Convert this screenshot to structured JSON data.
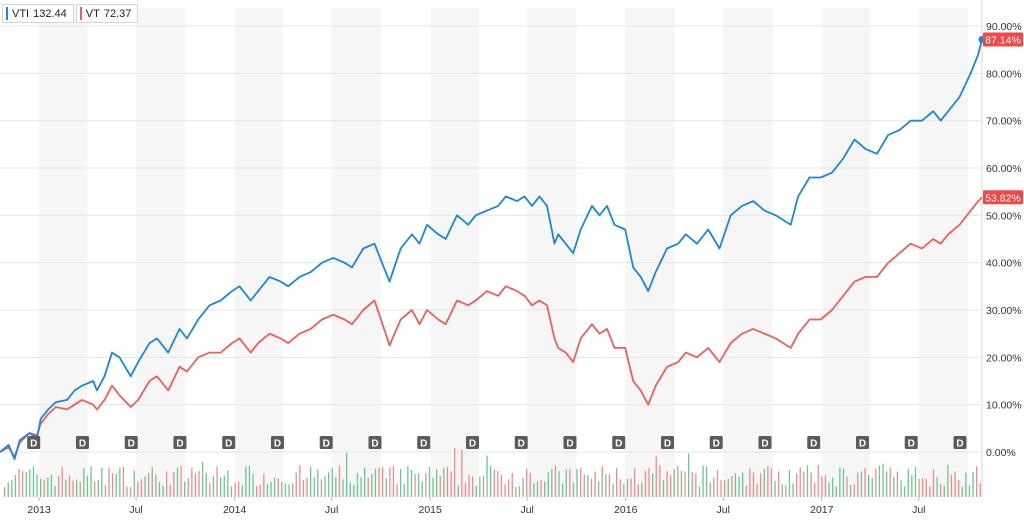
{
  "legend": {
    "vti": {
      "symbol": "VTI",
      "value": "132.44",
      "color": "#1a86e0"
    },
    "vt": {
      "symbol": "VT",
      "value": "72.37",
      "color": "#f25c5c"
    }
  },
  "chart_data": {
    "type": "line",
    "ylim": [
      -3,
      92
    ],
    "y_unit": "%",
    "y_ticks": [
      "0.00%",
      "10.00%",
      "20.00%",
      "30.00%",
      "40.00%",
      "50.00%",
      "60.00%",
      "70.00%",
      "80.00%",
      "90.00%"
    ],
    "y_tick_values": [
      0,
      10,
      20,
      30,
      40,
      50,
      60,
      70,
      80,
      90
    ],
    "x_ticks": [
      "2013",
      "Jul",
      "2014",
      "Jul",
      "2015",
      "Jul",
      "2016",
      "Jul",
      "2017",
      "Jul"
    ],
    "x_tick_dates": [
      "2013-01-01",
      "2013-07-01",
      "2014-01-01",
      "2014-07-01",
      "2015-01-01",
      "2015-07-01",
      "2016-01-01",
      "2016-07-01",
      "2017-01-01",
      "2017-07-01"
    ],
    "x_range": [
      "2012-10-20",
      "2017-10-27"
    ],
    "shading": "alternating quarters",
    "end_labels": [
      {
        "series": "VTI",
        "text": "87.14%",
        "value": 87.14
      },
      {
        "series": "VT",
        "text": "53.82%",
        "value": 53.82
      }
    ],
    "dividend_marker_label": "D",
    "dividend_dates": [
      "2012-12-21",
      "2013-03-22",
      "2013-06-21",
      "2013-09-20",
      "2013-12-20",
      "2014-03-21",
      "2014-06-20",
      "2014-09-19",
      "2014-12-19",
      "2015-03-20",
      "2015-06-19",
      "2015-09-18",
      "2015-12-18",
      "2016-03-18",
      "2016-06-17",
      "2016-09-16",
      "2016-12-16",
      "2017-03-17",
      "2017-06-16",
      "2017-09-15"
    ],
    "series": [
      {
        "name": "VTI",
        "color": "#1a86e0",
        "points": [
          [
            "2012-10-20",
            0
          ],
          [
            "2012-11-05",
            1.5
          ],
          [
            "2012-11-16",
            -1.5
          ],
          [
            "2012-11-26",
            2.5
          ],
          [
            "2012-12-14",
            4
          ],
          [
            "2012-12-28",
            3
          ],
          [
            "2013-01-04",
            7
          ],
          [
            "2013-01-18",
            9
          ],
          [
            "2013-02-01",
            10.5
          ],
          [
            "2013-02-22",
            11
          ],
          [
            "2013-03-08",
            13
          ],
          [
            "2013-03-22",
            14
          ],
          [
            "2013-04-12",
            15
          ],
          [
            "2013-04-19",
            13
          ],
          [
            "2013-05-03",
            16
          ],
          [
            "2013-05-17",
            21
          ],
          [
            "2013-05-31",
            20
          ],
          [
            "2013-06-21",
            16
          ],
          [
            "2013-07-05",
            19
          ],
          [
            "2013-07-26",
            23
          ],
          [
            "2013-08-09",
            24
          ],
          [
            "2013-08-30",
            21
          ],
          [
            "2013-09-20",
            26
          ],
          [
            "2013-10-04",
            24
          ],
          [
            "2013-10-25",
            28
          ],
          [
            "2013-11-15",
            31
          ],
          [
            "2013-12-06",
            32
          ],
          [
            "2013-12-27",
            34
          ],
          [
            "2014-01-10",
            35
          ],
          [
            "2014-01-31",
            32
          ],
          [
            "2014-02-14",
            34
          ],
          [
            "2014-03-07",
            37
          ],
          [
            "2014-03-28",
            36
          ],
          [
            "2014-04-11",
            35
          ],
          [
            "2014-05-02",
            37
          ],
          [
            "2014-05-23",
            38
          ],
          [
            "2014-06-13",
            40
          ],
          [
            "2014-07-04",
            41
          ],
          [
            "2014-07-25",
            40
          ],
          [
            "2014-08-08",
            39
          ],
          [
            "2014-08-29",
            43
          ],
          [
            "2014-09-19",
            44
          ],
          [
            "2014-10-10",
            38
          ],
          [
            "2014-10-17",
            36
          ],
          [
            "2014-11-07",
            43
          ],
          [
            "2014-11-28",
            46
          ],
          [
            "2014-12-12",
            44
          ],
          [
            "2014-12-26",
            48
          ],
          [
            "2015-01-16",
            46
          ],
          [
            "2015-01-30",
            45
          ],
          [
            "2015-02-20",
            50
          ],
          [
            "2015-03-13",
            48
          ],
          [
            "2015-03-27",
            50
          ],
          [
            "2015-04-17",
            51
          ],
          [
            "2015-05-08",
            52
          ],
          [
            "2015-05-22",
            54
          ],
          [
            "2015-06-12",
            53
          ],
          [
            "2015-06-26",
            54
          ],
          [
            "2015-07-10",
            52
          ],
          [
            "2015-07-24",
            54
          ],
          [
            "2015-08-07",
            52
          ],
          [
            "2015-08-21",
            44
          ],
          [
            "2015-08-28",
            46
          ],
          [
            "2015-09-11",
            44
          ],
          [
            "2015-09-25",
            42
          ],
          [
            "2015-10-09",
            47
          ],
          [
            "2015-10-30",
            52
          ],
          [
            "2015-11-13",
            50
          ],
          [
            "2015-11-27",
            52
          ],
          [
            "2015-12-11",
            48
          ],
          [
            "2015-12-31",
            47
          ],
          [
            "2016-01-15",
            39
          ],
          [
            "2016-01-29",
            37
          ],
          [
            "2016-02-12",
            34
          ],
          [
            "2016-02-26",
            38
          ],
          [
            "2016-03-18",
            43
          ],
          [
            "2016-04-08",
            44
          ],
          [
            "2016-04-22",
            46
          ],
          [
            "2016-05-13",
            44
          ],
          [
            "2016-06-03",
            47
          ],
          [
            "2016-06-24",
            43
          ],
          [
            "2016-07-15",
            50
          ],
          [
            "2016-08-05",
            52
          ],
          [
            "2016-08-26",
            53
          ],
          [
            "2016-09-16",
            51
          ],
          [
            "2016-10-07",
            50
          ],
          [
            "2016-11-04",
            48
          ],
          [
            "2016-11-18",
            54
          ],
          [
            "2016-12-09",
            58
          ],
          [
            "2016-12-30",
            58
          ],
          [
            "2017-01-20",
            59
          ],
          [
            "2017-02-10",
            62
          ],
          [
            "2017-03-03",
            66
          ],
          [
            "2017-03-24",
            64
          ],
          [
            "2017-04-14",
            63
          ],
          [
            "2017-05-05",
            67
          ],
          [
            "2017-05-26",
            68
          ],
          [
            "2017-06-16",
            70
          ],
          [
            "2017-07-07",
            70
          ],
          [
            "2017-07-28",
            72
          ],
          [
            "2017-08-11",
            70
          ],
          [
            "2017-08-25",
            72
          ],
          [
            "2017-09-15",
            75
          ],
          [
            "2017-10-06",
            80
          ],
          [
            "2017-10-20",
            84
          ],
          [
            "2017-10-27",
            87.14
          ]
        ]
      },
      {
        "name": "VT",
        "color": "#f25c5c",
        "points": [
          [
            "2012-10-20",
            0
          ],
          [
            "2012-11-05",
            1
          ],
          [
            "2012-11-16",
            -1
          ],
          [
            "2012-11-26",
            2
          ],
          [
            "2012-12-14",
            4
          ],
          [
            "2012-12-28",
            3.5
          ],
          [
            "2013-01-04",
            6
          ],
          [
            "2013-01-18",
            8
          ],
          [
            "2013-02-01",
            9.5
          ],
          [
            "2013-02-22",
            9
          ],
          [
            "2013-03-08",
            10
          ],
          [
            "2013-03-22",
            11
          ],
          [
            "2013-04-12",
            10
          ],
          [
            "2013-04-19",
            9
          ],
          [
            "2013-05-03",
            11
          ],
          [
            "2013-05-17",
            14
          ],
          [
            "2013-05-31",
            12
          ],
          [
            "2013-06-21",
            9.5
          ],
          [
            "2013-07-05",
            11
          ],
          [
            "2013-07-26",
            15
          ],
          [
            "2013-08-09",
            16
          ],
          [
            "2013-08-30",
            13
          ],
          [
            "2013-09-20",
            18
          ],
          [
            "2013-10-04",
            17
          ],
          [
            "2013-10-25",
            20
          ],
          [
            "2013-11-15",
            21
          ],
          [
            "2013-12-06",
            21
          ],
          [
            "2013-12-27",
            23
          ],
          [
            "2014-01-10",
            24
          ],
          [
            "2014-01-31",
            21
          ],
          [
            "2014-02-14",
            23
          ],
          [
            "2014-03-07",
            25
          ],
          [
            "2014-03-28",
            24
          ],
          [
            "2014-04-11",
            23
          ],
          [
            "2014-05-02",
            25
          ],
          [
            "2014-05-23",
            26
          ],
          [
            "2014-06-13",
            28
          ],
          [
            "2014-07-04",
            29
          ],
          [
            "2014-07-25",
            28
          ],
          [
            "2014-08-08",
            27
          ],
          [
            "2014-08-29",
            30
          ],
          [
            "2014-09-19",
            32
          ],
          [
            "2014-10-10",
            25
          ],
          [
            "2014-10-17",
            22.5
          ],
          [
            "2014-11-07",
            28
          ],
          [
            "2014-11-28",
            30
          ],
          [
            "2014-12-12",
            27
          ],
          [
            "2014-12-26",
            30
          ],
          [
            "2015-01-16",
            28
          ],
          [
            "2015-01-30",
            27
          ],
          [
            "2015-02-20",
            32
          ],
          [
            "2015-03-13",
            31
          ],
          [
            "2015-03-27",
            32
          ],
          [
            "2015-04-17",
            34
          ],
          [
            "2015-05-08",
            33
          ],
          [
            "2015-05-22",
            35
          ],
          [
            "2015-06-12",
            34
          ],
          [
            "2015-06-26",
            33
          ],
          [
            "2015-07-10",
            31
          ],
          [
            "2015-07-24",
            32
          ],
          [
            "2015-08-07",
            31
          ],
          [
            "2015-08-21",
            24
          ],
          [
            "2015-08-28",
            22
          ],
          [
            "2015-09-11",
            21
          ],
          [
            "2015-09-25",
            19
          ],
          [
            "2015-10-09",
            24
          ],
          [
            "2015-10-30",
            27
          ],
          [
            "2015-11-13",
            25
          ],
          [
            "2015-11-27",
            26
          ],
          [
            "2015-12-11",
            22
          ],
          [
            "2015-12-31",
            22
          ],
          [
            "2016-01-15",
            15
          ],
          [
            "2016-01-29",
            13
          ],
          [
            "2016-02-12",
            10
          ],
          [
            "2016-02-26",
            14
          ],
          [
            "2016-03-18",
            18
          ],
          [
            "2016-04-08",
            19
          ],
          [
            "2016-04-22",
            21
          ],
          [
            "2016-05-13",
            20
          ],
          [
            "2016-06-03",
            22
          ],
          [
            "2016-06-24",
            19
          ],
          [
            "2016-07-15",
            23
          ],
          [
            "2016-08-05",
            25
          ],
          [
            "2016-08-26",
            26
          ],
          [
            "2016-09-16",
            25
          ],
          [
            "2016-10-07",
            24
          ],
          [
            "2016-11-04",
            22
          ],
          [
            "2016-11-18",
            25
          ],
          [
            "2016-12-09",
            28
          ],
          [
            "2016-12-30",
            28
          ],
          [
            "2017-01-20",
            30
          ],
          [
            "2017-02-10",
            33
          ],
          [
            "2017-03-03",
            36
          ],
          [
            "2017-03-24",
            37
          ],
          [
            "2017-04-14",
            37
          ],
          [
            "2017-05-05",
            40
          ],
          [
            "2017-05-26",
            42
          ],
          [
            "2017-06-16",
            44
          ],
          [
            "2017-07-07",
            43
          ],
          [
            "2017-07-28",
            45
          ],
          [
            "2017-08-11",
            44
          ],
          [
            "2017-08-25",
            46
          ],
          [
            "2017-09-15",
            48
          ],
          [
            "2017-10-06",
            51
          ],
          [
            "2017-10-20",
            53
          ],
          [
            "2017-10-27",
            53.82
          ]
        ]
      }
    ]
  }
}
